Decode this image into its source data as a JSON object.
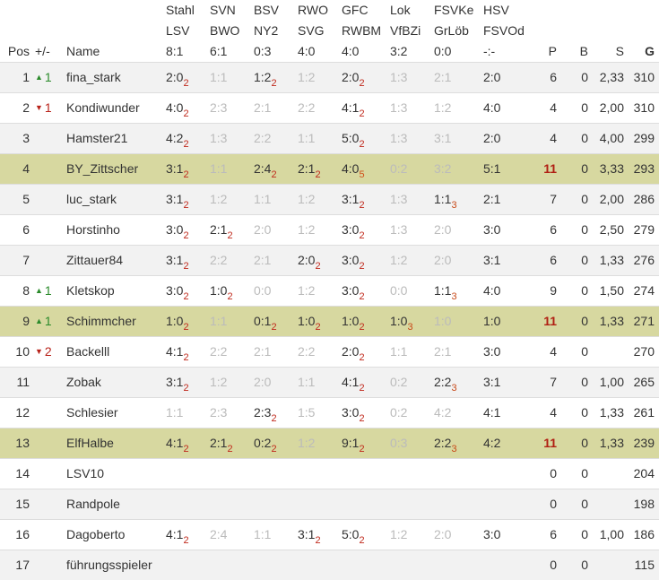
{
  "header": {
    "pos": "Pos",
    "change": "+/-",
    "name": "Name",
    "matches": [
      {
        "home": "Stahl",
        "away": "LSV",
        "result": "8:1"
      },
      {
        "home": "SVN",
        "away": "BWO",
        "result": "6:1"
      },
      {
        "home": "BSV",
        "away": "NY2",
        "result": "0:3"
      },
      {
        "home": "RWO",
        "away": "SVG",
        "result": "4:0"
      },
      {
        "home": "GFC",
        "away": "RWBM",
        "result": "4:0"
      },
      {
        "home": "Lok",
        "away": "VfBZi",
        "result": "3:2"
      },
      {
        "home": "FSVKe",
        "away": "GrLöb",
        "result": "0:0"
      },
      {
        "home": "HSV",
        "away": "FSVOd",
        "result": "-:-"
      }
    ],
    "p": "P",
    "b": "B",
    "s": "S",
    "g": "G"
  },
  "colors": {
    "highlight": "#d7d8a0",
    "alt_row": "#f2f2f2",
    "points": "#c0291c",
    "up": "#2a8a2a",
    "down": "#b8221a",
    "miss": "#bbbbbb"
  },
  "rows": [
    {
      "pos": "1",
      "dir": "up",
      "chg": "1",
      "name": "fina_stark",
      "tips": [
        "2:0|2",
        "1:1|0",
        "1:2|2",
        "1:2|0",
        "2:0|2",
        "1:3|0",
        "2:1|0",
        "2:0"
      ],
      "p": "6",
      "b": "0",
      "s": "2,33",
      "g": "310"
    },
    {
      "pos": "2",
      "dir": "down",
      "chg": "1",
      "name": "Kondiwunder",
      "tips": [
        "4:0|2",
        "2:3|0",
        "2:1|0",
        "2:2|0",
        "4:1|2",
        "1:3|0",
        "1:2|0",
        "4:0"
      ],
      "p": "4",
      "b": "0",
      "s": "2,00",
      "g": "310"
    },
    {
      "pos": "3",
      "dir": "",
      "chg": "",
      "name": "Hamster21",
      "tips": [
        "4:2|2",
        "1:3|0",
        "2:2|0",
        "1:1|0",
        "5:0|2",
        "1:3|0",
        "3:1|0",
        "2:0"
      ],
      "p": "4",
      "b": "0",
      "s": "4,00",
      "g": "299"
    },
    {
      "pos": "4",
      "dir": "",
      "chg": "",
      "name": "BY_Zittscher",
      "highlight": true,
      "tips": [
        "3:1|2",
        "1:1|0",
        "2:4|2",
        "2:1|2",
        "4:0|5",
        "0:2|0",
        "3:2|0",
        "5:1"
      ],
      "p": "11",
      "b": "0",
      "s": "3,33",
      "g": "293"
    },
    {
      "pos": "5",
      "dir": "",
      "chg": "",
      "name": "luc_stark",
      "tips": [
        "3:1|2",
        "1:2|0",
        "1:1|0",
        "1:2|0",
        "3:1|2",
        "1:3|0",
        "1:1|3",
        "2:1"
      ],
      "p": "7",
      "b": "0",
      "s": "2,00",
      "g": "286"
    },
    {
      "pos": "6",
      "dir": "",
      "chg": "",
      "name": "Horstinho",
      "tips": [
        "3:0|2",
        "2:1|2",
        "2:0|0",
        "1:2|0",
        "3:0|2",
        "1:3|0",
        "2:0|0",
        "3:0"
      ],
      "p": "6",
      "b": "0",
      "s": "2,50",
      "g": "279"
    },
    {
      "pos": "7",
      "dir": "",
      "chg": "",
      "name": "Zittauer84",
      "tips": [
        "3:1|2",
        "2:2|0",
        "2:1|0",
        "2:0|2",
        "3:0|2",
        "1:2|0",
        "2:0|0",
        "3:1"
      ],
      "p": "6",
      "b": "0",
      "s": "1,33",
      "g": "276"
    },
    {
      "pos": "8",
      "dir": "up",
      "chg": "1",
      "name": "Kletskop",
      "tips": [
        "3:0|2",
        "1:0|2",
        "0:0|0",
        "1:2|0",
        "3:0|2",
        "0:0|0",
        "1:1|3",
        "4:0"
      ],
      "p": "9",
      "b": "0",
      "s": "1,50",
      "g": "274"
    },
    {
      "pos": "9",
      "dir": "up",
      "chg": "1",
      "name": "Schimmcher",
      "highlight": true,
      "tips": [
        "1:0|2",
        "1:1|0",
        "0:1|2",
        "1:0|2",
        "1:0|2",
        "1:0|3",
        "1:0|0",
        "1:0"
      ],
      "p": "11",
      "b": "0",
      "s": "1,33",
      "g": "271"
    },
    {
      "pos": "10",
      "dir": "down",
      "chg": "2",
      "name": "Backelll",
      "tips": [
        "4:1|2",
        "2:2|0",
        "2:1|0",
        "2:2|0",
        "2:0|2",
        "1:1|0",
        "2:1|0",
        "3:0"
      ],
      "p": "4",
      "b": "0",
      "s": "",
      "g": "270"
    },
    {
      "pos": "11",
      "dir": "",
      "chg": "",
      "name": "Zobak",
      "tips": [
        "3:1|2",
        "1:2|0",
        "2:0|0",
        "1:1|0",
        "4:1|2",
        "0:2|0",
        "2:2|3",
        "3:1"
      ],
      "p": "7",
      "b": "0",
      "s": "1,00",
      "g": "265"
    },
    {
      "pos": "12",
      "dir": "",
      "chg": "",
      "name": "Schlesier",
      "tips": [
        "1:1|0",
        "2:3|0",
        "2:3|2",
        "1:5|0",
        "3:0|2",
        "0:2|0",
        "4:2|0",
        "4:1"
      ],
      "p": "4",
      "b": "0",
      "s": "1,33",
      "g": "261"
    },
    {
      "pos": "13",
      "dir": "",
      "chg": "",
      "name": "ElfHalbe",
      "highlight": true,
      "tips": [
        "4:1|2",
        "2:1|2",
        "0:2|2",
        "1:2|0",
        "9:1|2",
        "0:3|0",
        "2:2|3",
        "4:2"
      ],
      "p": "11",
      "b": "0",
      "s": "1,33",
      "g": "239"
    },
    {
      "pos": "14",
      "dir": "",
      "chg": "",
      "name": "LSV10",
      "tips": [
        "",
        "",
        "",
        "",
        "",
        "",
        "",
        ""
      ],
      "p": "0",
      "b": "0",
      "s": "",
      "g": "204"
    },
    {
      "pos": "15",
      "dir": "",
      "chg": "",
      "name": "Randpole",
      "tips": [
        "",
        "",
        "",
        "",
        "",
        "",
        "",
        ""
      ],
      "p": "0",
      "b": "0",
      "s": "",
      "g": "198"
    },
    {
      "pos": "16",
      "dir": "",
      "chg": "",
      "name": "Dagoberto",
      "tips": [
        "4:1|2",
        "2:4|0",
        "1:1|0",
        "3:1|2",
        "5:0|2",
        "1:2|0",
        "2:0|0",
        "3:0"
      ],
      "p": "6",
      "b": "0",
      "s": "1,00",
      "g": "186"
    },
    {
      "pos": "17",
      "dir": "",
      "chg": "",
      "name": "führungsspieler",
      "tips": [
        "",
        "",
        "",
        "",
        "",
        "",
        "",
        ""
      ],
      "p": "0",
      "b": "0",
      "s": "",
      "g": "115"
    }
  ]
}
